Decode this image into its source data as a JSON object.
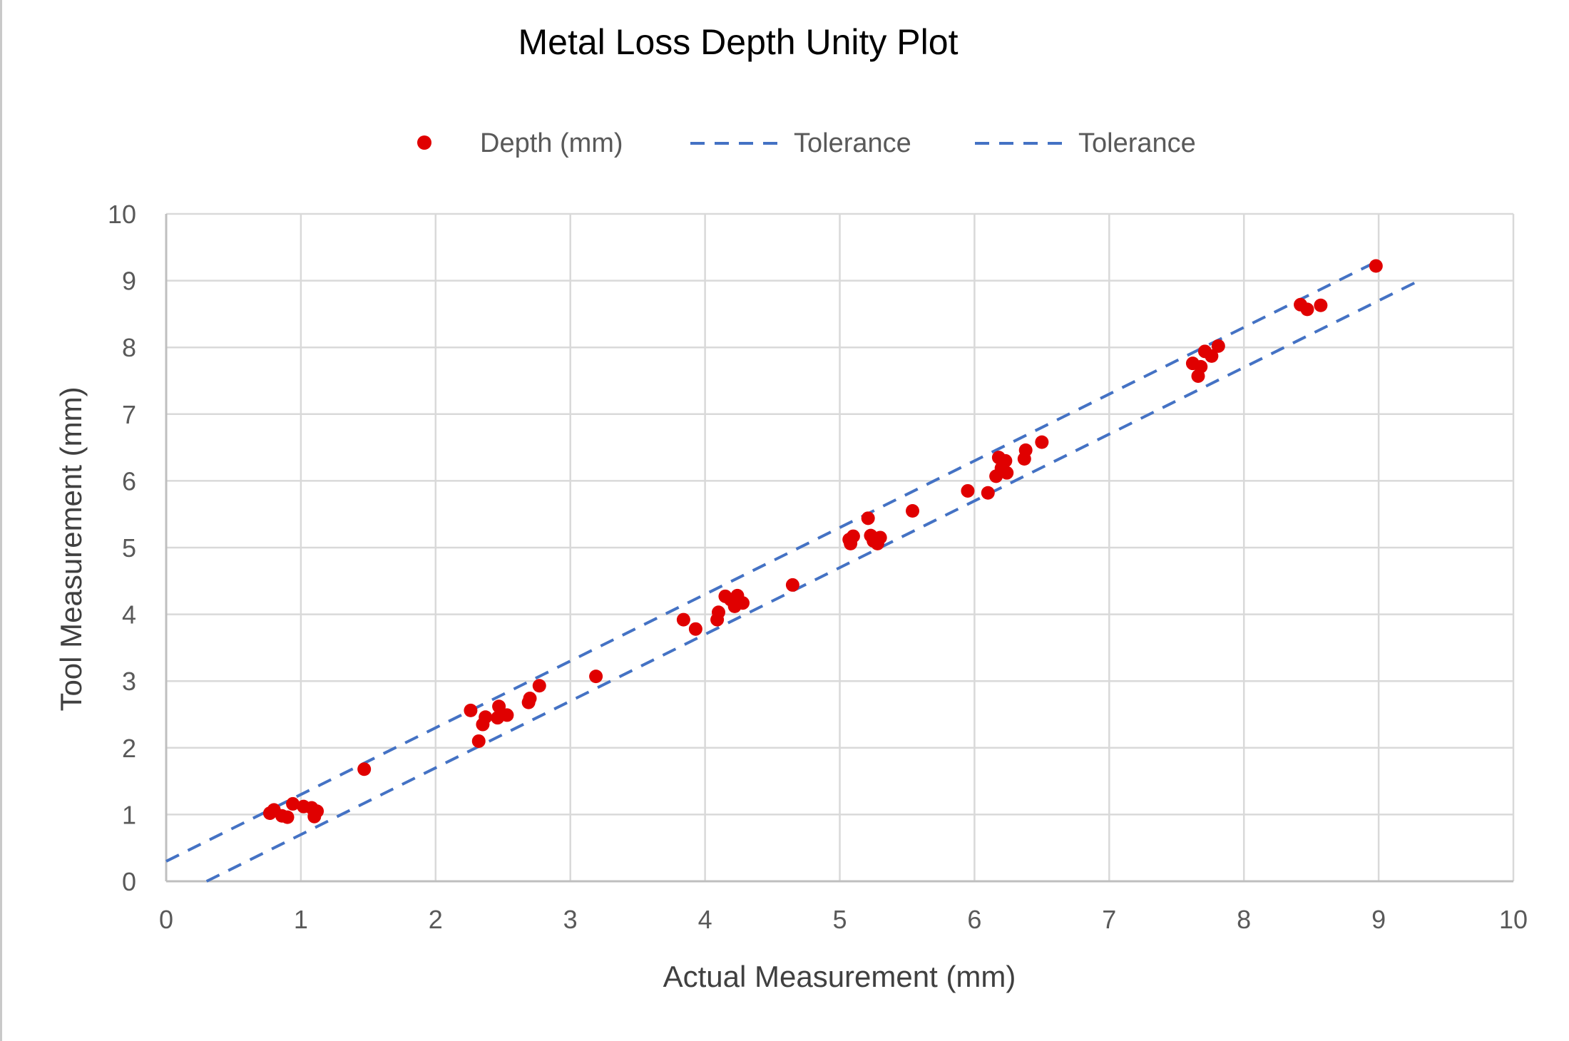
{
  "chart_data": {
    "type": "scatter",
    "title": "Metal Loss Depth Unity Plot",
    "xlabel": "Actual Measurement (mm)",
    "ylabel": "Tool Measurement (mm)",
    "xlim": [
      0,
      10
    ],
    "ylim": [
      0,
      10
    ],
    "xticks": [
      "0",
      "1",
      "2",
      "3",
      "4",
      "5",
      "6",
      "7",
      "8",
      "9",
      "10"
    ],
    "yticks": [
      "0",
      "1",
      "2",
      "3",
      "4",
      "5",
      "6",
      "7",
      "8",
      "9",
      "10"
    ],
    "grid": true,
    "legend_position": "top",
    "series": [
      {
        "name": "Depth (mm)",
        "kind": "scatter",
        "color": "#e00000",
        "points": [
          [
            0.77,
            1.02
          ],
          [
            0.8,
            1.07
          ],
          [
            0.86,
            0.98
          ],
          [
            0.9,
            0.96
          ],
          [
            0.94,
            1.16
          ],
          [
            1.02,
            1.12
          ],
          [
            1.08,
            1.1
          ],
          [
            1.1,
            0.97
          ],
          [
            1.12,
            1.05
          ],
          [
            1.47,
            1.68
          ],
          [
            2.26,
            2.56
          ],
          [
            2.32,
            2.1
          ],
          [
            2.35,
            2.35
          ],
          [
            2.37,
            2.46
          ],
          [
            2.46,
            2.45
          ],
          [
            2.47,
            2.62
          ],
          [
            2.53,
            2.49
          ],
          [
            2.69,
            2.68
          ],
          [
            2.7,
            2.74
          ],
          [
            2.77,
            2.93
          ],
          [
            3.19,
            3.07
          ],
          [
            3.84,
            3.92
          ],
          [
            3.93,
            3.78
          ],
          [
            4.09,
            3.92
          ],
          [
            4.1,
            4.03
          ],
          [
            4.15,
            4.27
          ],
          [
            4.19,
            4.22
          ],
          [
            4.22,
            4.12
          ],
          [
            4.24,
            4.28
          ],
          [
            4.28,
            4.17
          ],
          [
            4.65,
            4.44
          ],
          [
            5.07,
            5.12
          ],
          [
            5.08,
            5.06
          ],
          [
            5.1,
            5.17
          ],
          [
            5.21,
            5.44
          ],
          [
            5.23,
            5.18
          ],
          [
            5.25,
            5.1
          ],
          [
            5.28,
            5.06
          ],
          [
            5.3,
            5.15
          ],
          [
            5.54,
            5.55
          ],
          [
            5.95,
            5.85
          ],
          [
            6.1,
            5.82
          ],
          [
            6.16,
            6.07
          ],
          [
            6.18,
            6.35
          ],
          [
            6.2,
            6.19
          ],
          [
            6.23,
            6.3
          ],
          [
            6.24,
            6.12
          ],
          [
            6.37,
            6.33
          ],
          [
            6.38,
            6.46
          ],
          [
            6.5,
            6.58
          ],
          [
            7.62,
            7.76
          ],
          [
            7.66,
            7.57
          ],
          [
            7.68,
            7.71
          ],
          [
            7.71,
            7.94
          ],
          [
            7.76,
            7.87
          ],
          [
            7.81,
            8.02
          ],
          [
            8.42,
            8.64
          ],
          [
            8.47,
            8.57
          ],
          [
            8.57,
            8.63
          ],
          [
            8.98,
            9.22
          ]
        ]
      },
      {
        "name": "Tolerance",
        "kind": "line",
        "style": "dashed",
        "color": "#4472c4",
        "points": [
          [
            0,
            0.3
          ],
          [
            9,
            9.3
          ]
        ]
      },
      {
        "name": "Tolerance",
        "kind": "line",
        "style": "dashed",
        "color": "#4472c4",
        "points": [
          [
            0.3,
            0
          ],
          [
            9.3,
            9
          ]
        ]
      }
    ]
  }
}
